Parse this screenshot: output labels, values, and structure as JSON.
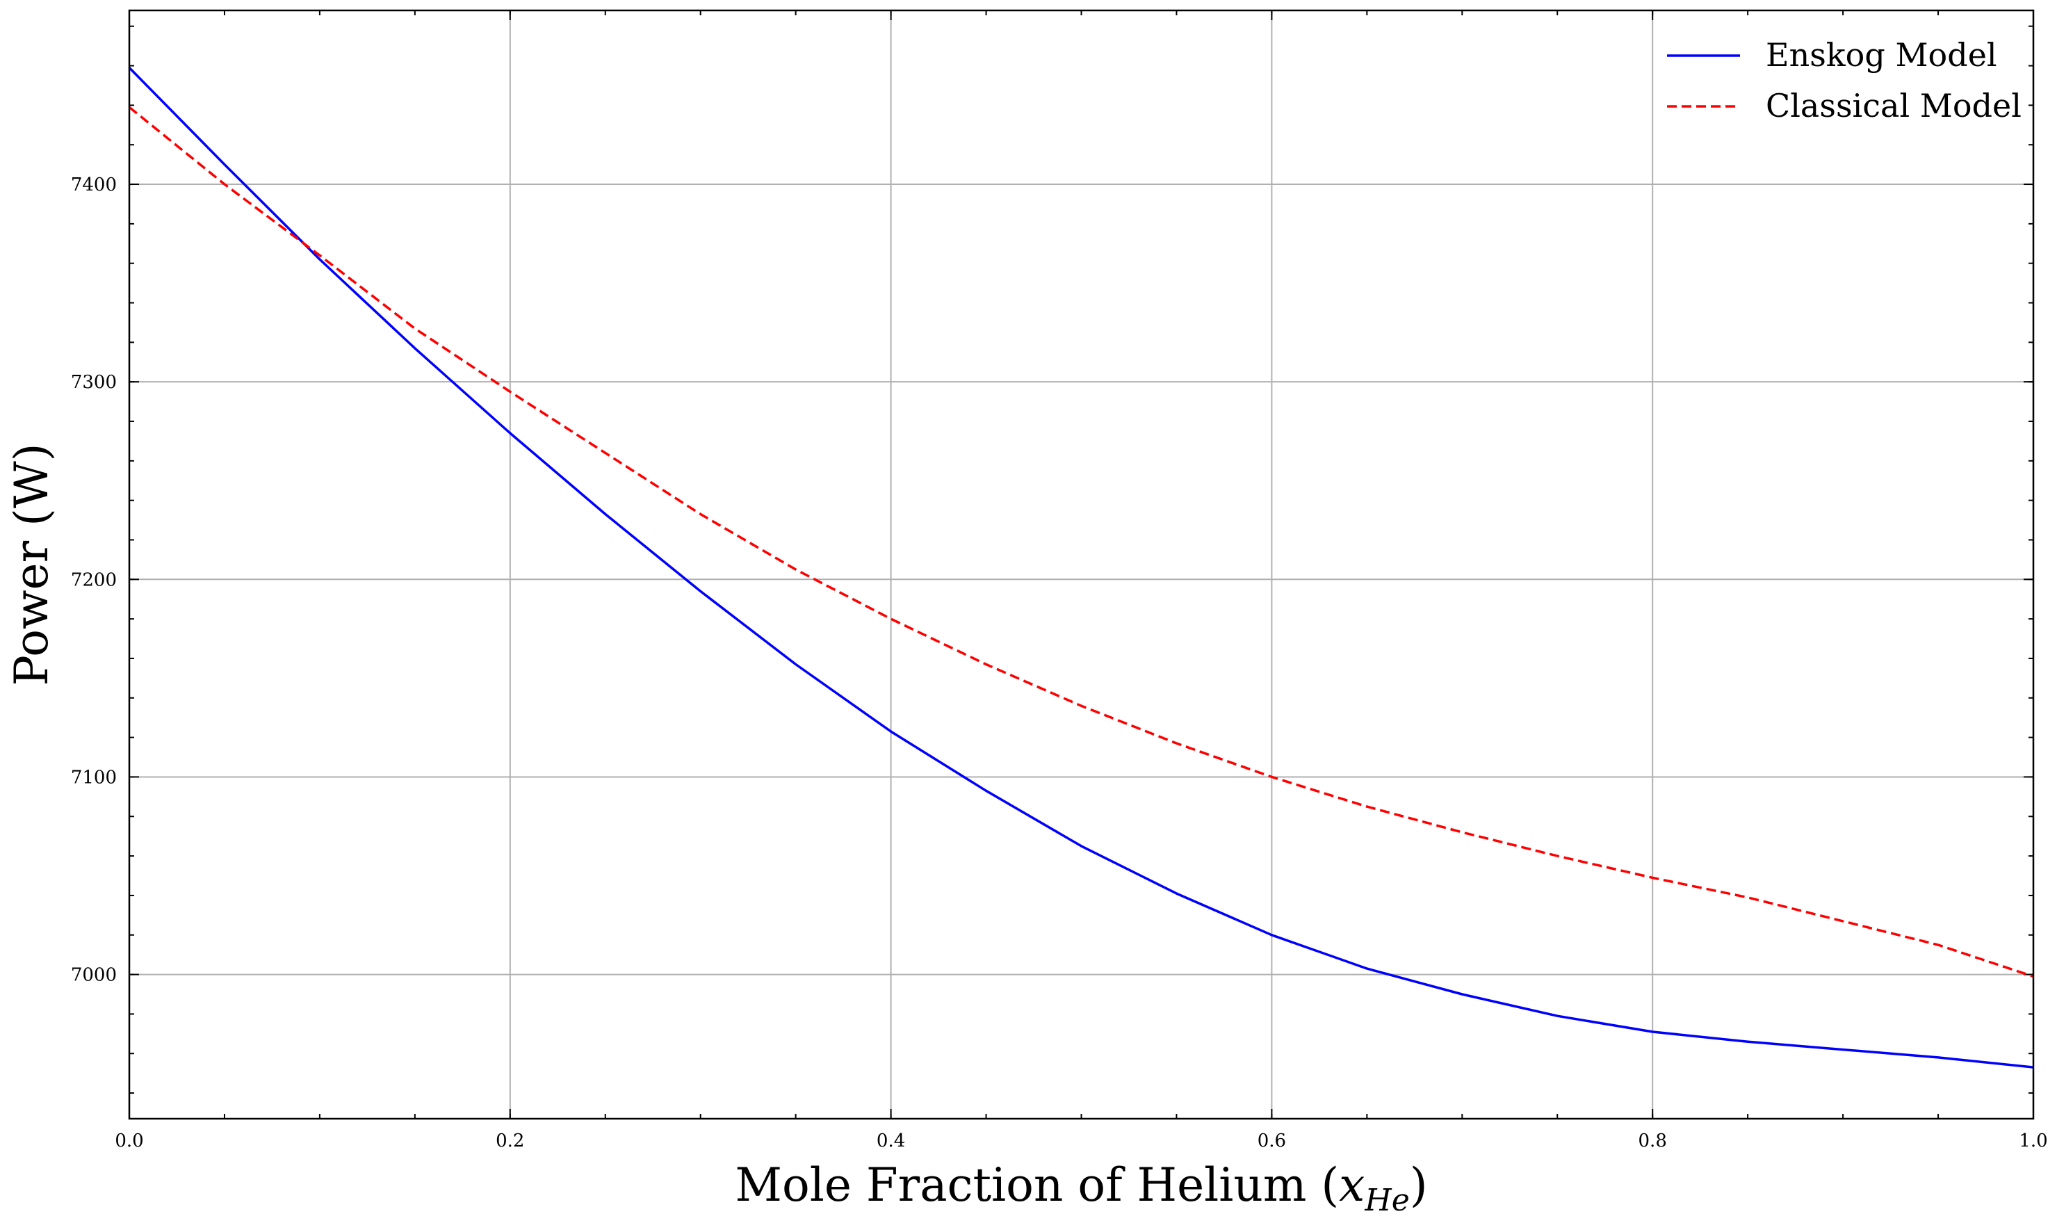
{
  "chart_data": {
    "type": "line",
    "xlabel": "Mole Fraction of Helium (",
    "xlabel_math": "x",
    "xlabel_sub": "He",
    "xlabel_close": ")",
    "ylabel": "Power (W)",
    "xlim": [
      0.0,
      1.0
    ],
    "ylim": [
      6927,
      7488
    ],
    "x_ticks": [
      0.0,
      0.2,
      0.4,
      0.6,
      0.8,
      1.0
    ],
    "x_tick_labels": [
      "0.0",
      "0.2",
      "0.4",
      "0.6",
      "0.8",
      "1.0"
    ],
    "x_minor_step": 0.05,
    "y_ticks": [
      7000,
      7100,
      7200,
      7300,
      7400
    ],
    "y_tick_labels": [
      "7000",
      "7100",
      "7200",
      "7300",
      "7400"
    ],
    "y_minor_step": 20,
    "grid": true,
    "legend_position": "top-right",
    "x": [
      0.0,
      0.05,
      0.1,
      0.15,
      0.2,
      0.25,
      0.3,
      0.35,
      0.4,
      0.45,
      0.5,
      0.55,
      0.6,
      0.65,
      0.7,
      0.75,
      0.8,
      0.85,
      0.9,
      0.95,
      1.0
    ],
    "series": [
      {
        "name": "Enskog Model",
        "color": "#0000ff",
        "style": "solid",
        "values": [
          7459,
          7410,
          7362,
          7317,
          7274,
          7233,
          7194,
          7157,
          7123,
          7093,
          7065,
          7041,
          7020,
          7003,
          6990,
          6979,
          6971,
          6966,
          6962,
          6958,
          6953
        ]
      },
      {
        "name": "Classical Model",
        "color": "#ff0000",
        "style": "dashed",
        "values": [
          7439,
          7400,
          7364,
          7327,
          7295,
          7264,
          7233,
          7205,
          7180,
          7157,
          7136,
          7117,
          7100,
          7085,
          7072,
          7060,
          7049,
          7039,
          7027,
          7015,
          6999
        ]
      }
    ]
  }
}
